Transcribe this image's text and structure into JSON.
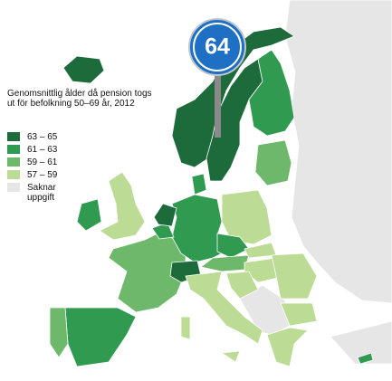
{
  "sign": {
    "label": "64"
  },
  "legend": {
    "title": "Genomsnittlig ålder då pension togs ut för befolkning 50–69 år, 2012",
    "items": [
      {
        "label": "63 – 65",
        "color": "#1d6b3b"
      },
      {
        "label": "61 – 63",
        "color": "#2f9a50"
      },
      {
        "label": "59 – 61",
        "color": "#6db86b"
      },
      {
        "label": "57 – 59",
        "color": "#bcdc96"
      },
      {
        "label": "Saknar uppgift",
        "color": "#e6e6e6"
      }
    ]
  }
}
